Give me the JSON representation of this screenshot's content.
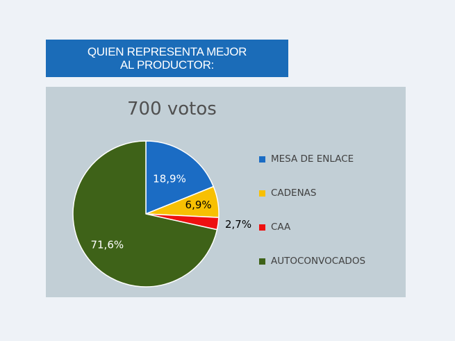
{
  "header": {
    "title": "QUIEN REPRESENTA MEJOR AL PRODUCTOR:"
  },
  "chart_data": {
    "type": "pie",
    "title": "700 votos",
    "slices": [
      {
        "label": "MESA DE ENLACE",
        "value": 18.9,
        "display": "18,9%",
        "color": "#1b6cc4",
        "label_color": "#ffffff"
      },
      {
        "label": "CADENAS",
        "value": 6.9,
        "display": "6,9%",
        "color": "#f7c003",
        "label_color": "#000000"
      },
      {
        "label": "CAA",
        "value": 2.7,
        "display": "2,7%",
        "color": "#ee1010",
        "label_color": "#000000"
      },
      {
        "label": "AUTOCONVOCADOS",
        "value": 71.6,
        "display": "71,6%",
        "color": "#3e6218",
        "label_color": "#ffffff"
      }
    ],
    "start_angle": "12 o'clock",
    "direction": "clockwise",
    "legend_position": "right"
  }
}
